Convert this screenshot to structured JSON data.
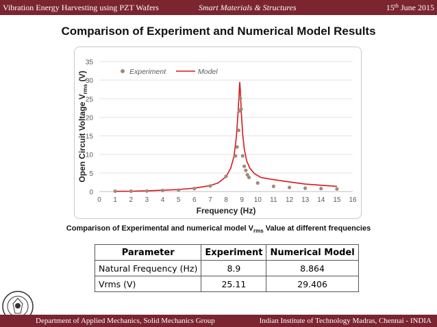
{
  "header": {
    "left": "Vibration Energy Harvesting using PZT Wafers",
    "center": "Smart Materials & Structures",
    "date_day": "15",
    "date_suffix": "th",
    "date_rest": " June 2015"
  },
  "title": "Comparison of Experiment and Numerical Model Results",
  "caption": {
    "prefix": "Comparison of Experimental and numerical model V",
    "sub": "rms",
    "suffix": " Value at different frequencies"
  },
  "chart_data": {
    "type": "scatter",
    "xlabel": "Frequency (Hz)",
    "ylabel": "Open Circuit Voltage V",
    "ylabel_sub": "rms",
    "ylabel_unit": " (V)",
    "xlim": [
      0,
      16
    ],
    "ylim": [
      0,
      35
    ],
    "xticks": [
      0,
      1,
      2,
      3,
      4,
      5,
      6,
      7,
      8,
      9,
      10,
      11,
      12,
      13,
      14,
      15,
      16
    ],
    "yticks": [
      0,
      5,
      10,
      15,
      20,
      25,
      30,
      35
    ],
    "grid": true,
    "legend_position": "top-left",
    "series": [
      {
        "name": "Experiment",
        "kind": "markers",
        "color": "#a08a78",
        "points": [
          {
            "x": 1,
            "y": 0.1
          },
          {
            "x": 2,
            "y": 0.1
          },
          {
            "x": 3,
            "y": 0.15
          },
          {
            "x": 4,
            "y": 0.3
          },
          {
            "x": 5,
            "y": 0.4
          },
          {
            "x": 6,
            "y": 0.8
          },
          {
            "x": 7,
            "y": 1.5
          },
          {
            "x": 8,
            "y": 4.1
          },
          {
            "x": 8.6,
            "y": 9.6
          },
          {
            "x": 8.7,
            "y": 12.0
          },
          {
            "x": 8.8,
            "y": 16.5
          },
          {
            "x": 8.85,
            "y": 21.7
          },
          {
            "x": 8.9,
            "y": 25.1
          },
          {
            "x": 8.95,
            "y": 22.2
          },
          {
            "x": 9.05,
            "y": 9.6
          },
          {
            "x": 9.15,
            "y": 6.8
          },
          {
            "x": 9.25,
            "y": 5.7
          },
          {
            "x": 9.35,
            "y": 4.5
          },
          {
            "x": 9.45,
            "y": 3.8
          },
          {
            "x": 10,
            "y": 2.3
          },
          {
            "x": 11,
            "y": 1.4
          },
          {
            "x": 12,
            "y": 1.1
          },
          {
            "x": 13,
            "y": 0.9
          },
          {
            "x": 14,
            "y": 0.8
          },
          {
            "x": 15,
            "y": 0.7
          }
        ]
      },
      {
        "name": "Model",
        "kind": "line",
        "color": "#d9141c",
        "points": [
          {
            "x": 1,
            "y": 0.05
          },
          {
            "x": 2,
            "y": 0.1
          },
          {
            "x": 3,
            "y": 0.2
          },
          {
            "x": 4,
            "y": 0.35
          },
          {
            "x": 5,
            "y": 0.55
          },
          {
            "x": 6,
            "y": 0.9
          },
          {
            "x": 7,
            "y": 1.6
          },
          {
            "x": 7.5,
            "y": 2.3
          },
          {
            "x": 8.0,
            "y": 4.0
          },
          {
            "x": 8.3,
            "y": 6.3
          },
          {
            "x": 8.5,
            "y": 9.5
          },
          {
            "x": 8.65,
            "y": 14.5
          },
          {
            "x": 8.75,
            "y": 20.5
          },
          {
            "x": 8.82,
            "y": 26.0
          },
          {
            "x": 8.864,
            "y": 29.4
          },
          {
            "x": 8.9,
            "y": 27.5
          },
          {
            "x": 8.97,
            "y": 21.0
          },
          {
            "x": 9.05,
            "y": 15.5
          },
          {
            "x": 9.15,
            "y": 11.5
          },
          {
            "x": 9.3,
            "y": 8.3
          },
          {
            "x": 9.5,
            "y": 6.3
          },
          {
            "x": 9.8,
            "y": 4.8
          },
          {
            "x": 10.2,
            "y": 3.8
          },
          {
            "x": 11,
            "y": 3.2
          },
          {
            "x": 12,
            "y": 2.6
          },
          {
            "x": 13,
            "y": 2.0
          },
          {
            "x": 14,
            "y": 1.7
          },
          {
            "x": 15,
            "y": 1.4
          }
        ]
      }
    ]
  },
  "table": {
    "headers": [
      "Parameter",
      "Experiment",
      "Numerical Model"
    ],
    "rows": [
      [
        "Natural Frequency (Hz)",
        "8.9",
        "8.864"
      ],
      [
        "Vrms (V)",
        "25.11",
        "29.406"
      ]
    ]
  },
  "footer": {
    "left": "Department of Applied Mechanics, Solid Mechanics Group",
    "right": "Indian Institute of Technology Madras, Chennai - INDIA"
  },
  "colors": {
    "bar": "#7a2530",
    "experiment": "#a08a78",
    "model": "#d9141c"
  }
}
